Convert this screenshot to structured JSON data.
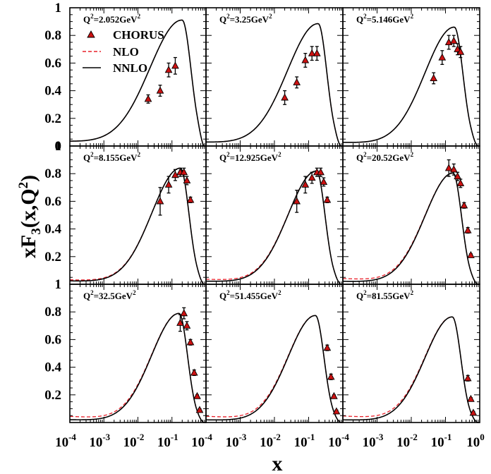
{
  "chart_data": {
    "type": "line",
    "xlabel": "x",
    "ylabel": "xF3(x,Q2)",
    "x_scale": "log",
    "xlim": [
      0.0001,
      1
    ],
    "ylim": [
      0,
      1
    ],
    "x_ticks": [
      {
        "value": 0.0001,
        "base": "10",
        "exp": "-4"
      },
      {
        "value": 0.001,
        "base": "10",
        "exp": "-3"
      },
      {
        "value": 0.01,
        "base": "10",
        "exp": "-2"
      },
      {
        "value": 0.1,
        "base": "10",
        "exp": "-1"
      },
      {
        "value": 1,
        "base": "10",
        "exp": "0"
      }
    ],
    "y_ticks": [
      {
        "value": 0,
        "label": "0"
      },
      {
        "value": 0.2,
        "label": "0.2"
      },
      {
        "value": 0.4,
        "label": "0.4"
      },
      {
        "value": 0.6,
        "label": "0.6"
      },
      {
        "value": 0.8,
        "label": "0.8"
      },
      {
        "value": 1,
        "label": "1"
      }
    ],
    "legend": {
      "placement": "top-left of first panel",
      "entries": [
        {
          "label": "CHORUS",
          "marker": "triangle",
          "color": "#cc0000"
        },
        {
          "label": "NLO",
          "style": "dashed",
          "color": "#e8202a"
        },
        {
          "label": "NNLO",
          "style": "solid",
          "color": "#000000"
        }
      ]
    },
    "panels": [
      {
        "q2": "2.052",
        "peak": 0.905,
        "peakLogX": -0.7,
        "wL": 0.95,
        "wR": 0.26,
        "tail0": 0.033,
        "nloBoost": 0.0,
        "points": [
          {
            "x": 0.02,
            "y": 0.34,
            "err": 0.03
          },
          {
            "x": 0.045,
            "y": 0.4,
            "err": 0.04
          },
          {
            "x": 0.08,
            "y": 0.55,
            "err": 0.05
          },
          {
            "x": 0.125,
            "y": 0.58,
            "err": 0.06
          }
        ]
      },
      {
        "q2": "3.25",
        "peak": 0.88,
        "peakLogX": -0.72,
        "wL": 0.9,
        "wR": 0.25,
        "tail0": 0.028,
        "nloBoost": 0.0,
        "points": [
          {
            "x": 0.02,
            "y": 0.35,
            "err": 0.05
          },
          {
            "x": 0.045,
            "y": 0.46,
            "err": 0.04
          },
          {
            "x": 0.08,
            "y": 0.62,
            "err": 0.05
          },
          {
            "x": 0.125,
            "y": 0.67,
            "err": 0.05
          },
          {
            "x": 0.175,
            "y": 0.67,
            "err": 0.05
          }
        ]
      },
      {
        "q2": "5.146",
        "peak": 0.855,
        "peakLogX": -0.74,
        "wL": 0.86,
        "wR": 0.25,
        "tail0": 0.026,
        "nloBoost": 0.0,
        "points": [
          {
            "x": 0.045,
            "y": 0.49,
            "err": 0.04
          },
          {
            "x": 0.08,
            "y": 0.64,
            "err": 0.05
          },
          {
            "x": 0.125,
            "y": 0.75,
            "err": 0.05
          },
          {
            "x": 0.175,
            "y": 0.76,
            "err": 0.04
          },
          {
            "x": 0.225,
            "y": 0.7,
            "err": 0.04
          },
          {
            "x": 0.275,
            "y": 0.68,
            "err": 0.04
          }
        ]
      },
      {
        "q2": "8.155",
        "peak": 0.835,
        "peakLogX": -0.75,
        "wL": 0.84,
        "wR": 0.25,
        "tail0": 0.024,
        "nloBoost": 0.008,
        "points": [
          {
            "x": 0.045,
            "y": 0.6,
            "err": 0.1
          },
          {
            "x": 0.08,
            "y": 0.72,
            "err": 0.06
          },
          {
            "x": 0.125,
            "y": 0.79,
            "err": 0.04
          },
          {
            "x": 0.175,
            "y": 0.81,
            "err": 0.03
          },
          {
            "x": 0.225,
            "y": 0.81,
            "err": 0.03
          },
          {
            "x": 0.275,
            "y": 0.75,
            "err": 0.03
          },
          {
            "x": 0.35,
            "y": 0.61,
            "err": 0.02
          }
        ]
      },
      {
        "q2": "12.925",
        "peak": 0.815,
        "peakLogX": -0.77,
        "wL": 0.83,
        "wR": 0.25,
        "tail0": 0.022,
        "nloBoost": 0.014,
        "points": [
          {
            "x": 0.045,
            "y": 0.6,
            "err": 0.08
          },
          {
            "x": 0.08,
            "y": 0.72,
            "err": 0.06
          },
          {
            "x": 0.125,
            "y": 0.77,
            "err": 0.04
          },
          {
            "x": 0.175,
            "y": 0.81,
            "err": 0.03
          },
          {
            "x": 0.225,
            "y": 0.81,
            "err": 0.03
          },
          {
            "x": 0.275,
            "y": 0.74,
            "err": 0.03
          },
          {
            "x": 0.35,
            "y": 0.61,
            "err": 0.02
          }
        ]
      },
      {
        "q2": "20.52",
        "peak": 0.8,
        "peakLogX": -0.78,
        "wL": 0.82,
        "wR": 0.25,
        "tail0": 0.021,
        "nloBoost": 0.02,
        "points": [
          {
            "x": 0.125,
            "y": 0.84,
            "err": 0.06
          },
          {
            "x": 0.175,
            "y": 0.83,
            "err": 0.04
          },
          {
            "x": 0.225,
            "y": 0.78,
            "err": 0.03
          },
          {
            "x": 0.275,
            "y": 0.73,
            "err": 0.03
          },
          {
            "x": 0.35,
            "y": 0.57,
            "err": 0.02
          },
          {
            "x": 0.45,
            "y": 0.39,
            "err": 0.02
          },
          {
            "x": 0.55,
            "y": 0.21,
            "err": 0.01
          }
        ]
      },
      {
        "q2": "32.5",
        "peak": 0.785,
        "peakLogX": -0.79,
        "wL": 0.81,
        "wR": 0.25,
        "tail0": 0.02,
        "nloBoost": 0.024,
        "points": [
          {
            "x": 0.175,
            "y": 0.72,
            "err": 0.06
          },
          {
            "x": 0.225,
            "y": 0.79,
            "err": 0.04
          },
          {
            "x": 0.275,
            "y": 0.7,
            "err": 0.03
          },
          {
            "x": 0.35,
            "y": 0.58,
            "err": 0.02
          },
          {
            "x": 0.45,
            "y": 0.36,
            "err": 0.02
          },
          {
            "x": 0.55,
            "y": 0.19,
            "err": 0.01
          },
          {
            "x": 0.65,
            "y": 0.09,
            "err": 0.01
          }
        ]
      },
      {
        "q2": "51.455",
        "peak": 0.77,
        "peakLogX": -0.8,
        "wL": 0.8,
        "wR": 0.25,
        "tail0": 0.019,
        "nloBoost": 0.026,
        "points": [
          {
            "x": 0.35,
            "y": 0.54,
            "err": 0.02
          },
          {
            "x": 0.45,
            "y": 0.33,
            "err": 0.02
          },
          {
            "x": 0.55,
            "y": 0.19,
            "err": 0.01
          },
          {
            "x": 0.65,
            "y": 0.08,
            "err": 0.01
          }
        ]
      },
      {
        "q2": "81.55",
        "peak": 0.76,
        "peakLogX": -0.8,
        "wL": 0.8,
        "wR": 0.25,
        "tail0": 0.019,
        "nloBoost": 0.028,
        "points": [
          {
            "x": 0.45,
            "y": 0.32,
            "err": 0.02
          },
          {
            "x": 0.55,
            "y": 0.17,
            "err": 0.01
          },
          {
            "x": 0.65,
            "y": 0.07,
            "err": 0.01
          }
        ]
      }
    ]
  }
}
